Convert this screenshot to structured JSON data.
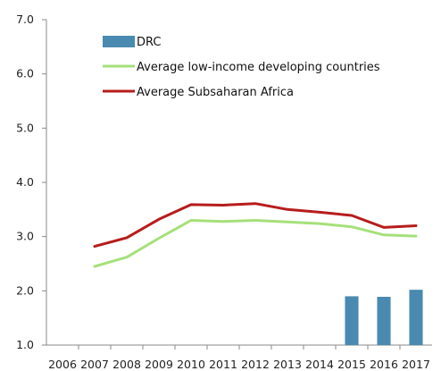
{
  "chart_data": {
    "type": "bar+line",
    "title": "",
    "xlabel": "",
    "ylabel": "",
    "ylim": [
      1.0,
      7.0
    ],
    "yticks": [
      "1.0",
      "2.0",
      "3.0",
      "4.0",
      "5.0",
      "6.0",
      "7.0"
    ],
    "categories": [
      "2006",
      "2007",
      "2008",
      "2009",
      "2010",
      "2011",
      "2012",
      "2013",
      "2014",
      "2015",
      "2016",
      "2017"
    ],
    "grid": false,
    "legend_position": "top-left",
    "series": [
      {
        "name": "DRC",
        "kind": "bar",
        "color": "#4a8ab0",
        "values": [
          null,
          null,
          null,
          null,
          null,
          null,
          null,
          null,
          null,
          1.9,
          1.89,
          2.02
        ]
      },
      {
        "name": "Average low-income developing countries",
        "kind": "line",
        "color": "#a6e07a",
        "values": [
          null,
          2.45,
          2.62,
          2.97,
          3.3,
          3.28,
          3.3,
          3.27,
          3.24,
          3.18,
          3.03,
          3.01
        ]
      },
      {
        "name": "Average Subsaharan Africa",
        "kind": "line",
        "color": "#b71c1c",
        "values": [
          null,
          2.82,
          2.98,
          3.32,
          3.59,
          3.58,
          3.61,
          3.5,
          3.45,
          3.39,
          3.17,
          3.2
        ]
      }
    ]
  }
}
